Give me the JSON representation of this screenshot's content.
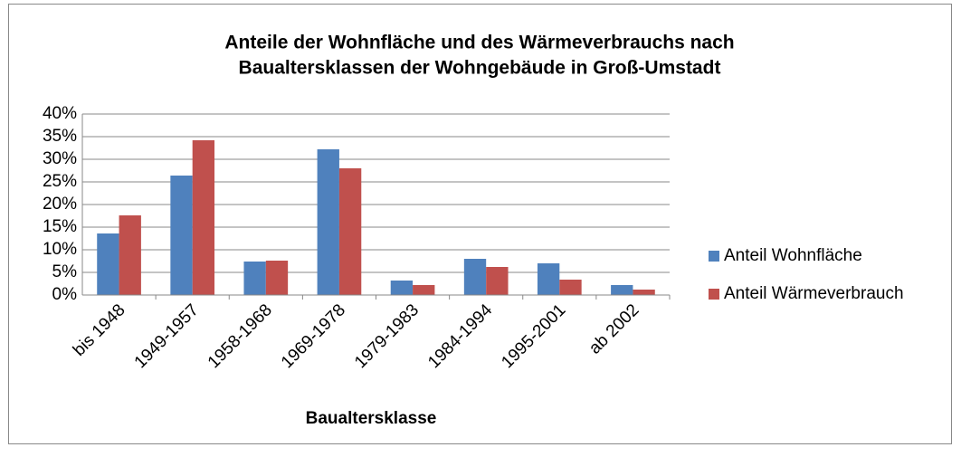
{
  "chart_data": {
    "type": "bar",
    "title": [
      "Anteile der Wohnfläche und des Wärmeverbrauchs nach",
      "Baualtersklassen der Wohngebäude in Groß-Umstadt"
    ],
    "xlabel": "Baualtersklasse",
    "categories": [
      "bis 1948",
      "1949-1957",
      "1958-1968",
      "1969-1978",
      "1979-1983",
      "1984-1994",
      "1995-2001",
      "ab 2002"
    ],
    "series": [
      {
        "name": "Anteil Wohnfläche",
        "color": "#4f81bd",
        "values": [
          13.6,
          26.4,
          7.4,
          32.2,
          3.2,
          8,
          7,
          2.2
        ]
      },
      {
        "name": "Anteil Wärmeverbrauch",
        "color": "#c0504d",
        "values": [
          17.6,
          34.2,
          7.6,
          28,
          2.2,
          6.2,
          3.4,
          1.2
        ]
      }
    ],
    "ylim": [
      0,
      40
    ],
    "yticks": [
      {
        "value": 0,
        "label": "0%"
      },
      {
        "value": 5,
        "label": "5%"
      },
      {
        "value": 10,
        "label": "10%"
      },
      {
        "value": 15,
        "label": "15%"
      },
      {
        "value": 20,
        "label": "20%"
      },
      {
        "value": 25,
        "label": "25%"
      },
      {
        "value": 30,
        "label": "30%"
      },
      {
        "value": 35,
        "label": "35%"
      },
      {
        "value": 40,
        "label": "40%"
      }
    ],
    "grid": true,
    "legend": "right"
  }
}
